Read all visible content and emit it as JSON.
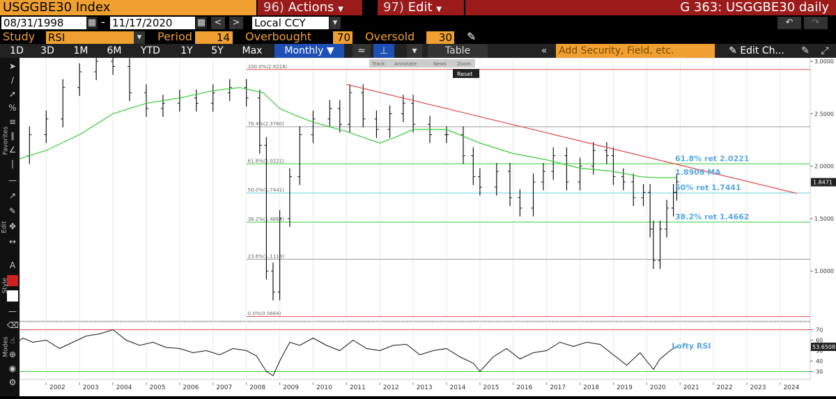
{
  "header": {
    "security": "USGGBE30 Index",
    "actions_num": "96)",
    "actions_label": "Actions",
    "edit_num": "97)",
    "edit_label": "Edit",
    "chart_title": "G 363: USGGBE30 daily"
  },
  "range": {
    "start": "08/31/1998",
    "separator": "-",
    "end": "11/17/2020",
    "currency": "Local CCY"
  },
  "study": {
    "label": "Study",
    "value": "RSI",
    "period_label": "Period",
    "period": "14",
    "overbought_label": "Overbought",
    "overbought": "70",
    "oversold_label": "Oversold",
    "oversold": "30"
  },
  "periods": [
    "1D",
    "3D",
    "1M",
    "6M",
    "YTD",
    "1Y",
    "5Y",
    "Max"
  ],
  "frequency": "Monthly",
  "table_label": "Table",
  "search_placeholder": "Add Security, Field, etc.",
  "edit_chart_label": "Edit Ch...",
  "overlay_tools": {
    "track": "Track",
    "annotate": "Annotate",
    "news": "News",
    "zoom": "Zoom",
    "reset": "Reset"
  },
  "left_labels": {
    "favorites": "Favorites",
    "edit": "Edit",
    "style": "Style",
    "modes": "Modes"
  },
  "colors": {
    "accent_orange": "#f0a030",
    "menu_red": "#9b1b1b",
    "ma_green": "#33cc33",
    "trend_red": "#e05050",
    "annot_blue": "#5aa8e0"
  },
  "chart_data": {
    "type": "line",
    "x_tick_labels": [
      "2002",
      "2003",
      "2004",
      "2005",
      "2006",
      "2007",
      "2008",
      "2009",
      "2010",
      "2011",
      "2012",
      "2013",
      "2014",
      "2015",
      "2016",
      "2017",
      "2018",
      "2019",
      "2020",
      "2021",
      "2022",
      "2023",
      "2024"
    ],
    "y_tick_labels": [
      "3.0000",
      "2.5000",
      "2.0000",
      "1.5000",
      "1.0000"
    ],
    "y_ticks": [
      3.0,
      2.5,
      2.0,
      1.5,
      1.0
    ],
    "ylim": [
      0.55,
      3.02
    ],
    "price_series": {
      "name": "USGGBE30 monthly bars",
      "x": [
        2001.0,
        2001.5,
        2002.0,
        2002.5,
        2003.0,
        2003.5,
        2004.0,
        2004.5,
        2005.0,
        2005.5,
        2006.0,
        2006.5,
        2007.0,
        2007.5,
        2008.0,
        2008.4,
        2008.6,
        2008.8,
        2009.0,
        2009.3,
        2009.6,
        2010.0,
        2010.5,
        2010.8,
        2011.1,
        2011.5,
        2011.9,
        2012.3,
        2012.7,
        2013.0,
        2013.5,
        2014.0,
        2014.5,
        2014.8,
        2015.0,
        2015.5,
        2015.9,
        2016.2,
        2016.6,
        2016.9,
        2017.2,
        2017.6,
        2018.0,
        2018.4,
        2018.8,
        2019.0,
        2019.3,
        2019.6,
        2019.9,
        2020.1,
        2020.2,
        2020.4,
        2020.6,
        2020.8,
        2020.9
      ],
      "values": [
        2.1,
        2.3,
        2.45,
        2.75,
        2.9,
        3.0,
        2.95,
        2.7,
        2.55,
        2.6,
        2.65,
        2.6,
        2.7,
        2.75,
        2.65,
        2.2,
        1.0,
        0.8,
        1.5,
        1.9,
        2.3,
        2.45,
        2.55,
        2.4,
        2.7,
        2.45,
        2.35,
        2.5,
        2.6,
        2.4,
        2.3,
        2.3,
        2.1,
        1.9,
        1.8,
        1.95,
        1.7,
        1.6,
        1.85,
        1.95,
        2.1,
        1.85,
        2.0,
        2.15,
        2.1,
        1.9,
        1.85,
        1.7,
        1.75,
        1.4,
        1.1,
        1.4,
        1.6,
        1.75,
        1.85
      ]
    },
    "moving_average": {
      "name": "MA",
      "x": [
        2001.0,
        2002.0,
        2003.0,
        2004.0,
        2005.0,
        2006.0,
        2007.0,
        2007.8,
        2008.5,
        2009.0,
        2009.5,
        2010.0,
        2011.0,
        2012.0,
        2012.5,
        2013.0,
        2014.0,
        2015.0,
        2016.0,
        2017.0,
        2018.0,
        2019.0,
        2019.8,
        2020.3,
        2020.9
      ],
      "values": [
        2.05,
        2.15,
        2.3,
        2.5,
        2.6,
        2.65,
        2.72,
        2.75,
        2.7,
        2.55,
        2.48,
        2.42,
        2.33,
        2.22,
        2.28,
        2.35,
        2.35,
        2.22,
        2.12,
        2.06,
        1.98,
        1.95,
        1.9,
        1.89,
        1.89
      ]
    },
    "trendline": {
      "x": [
        2011.0,
        2024.5
      ],
      "values": [
        2.78,
        1.74
      ]
    },
    "fib_levels": [
      {
        "label": "100.0%(2.9218)",
        "value": 2.9218,
        "color": "#e05050"
      },
      {
        "label": "76.4%(2.3760)",
        "value": 2.376,
        "color": "#999999"
      },
      {
        "label": "61.8%(2.0221)",
        "value": 2.0221,
        "color": "#33cc33"
      },
      {
        "label": "50.0%(1.7441)",
        "value": 1.7441,
        "color": "#5fd0e0"
      },
      {
        "label": "38.2%(1.4662)",
        "value": 1.4662,
        "color": "#33cc33"
      },
      {
        "label": "23.6%(1.1118)",
        "value": 1.1118,
        "color": "#999999"
      },
      {
        "label": "0.0%(0.5664)",
        "value": 0.5664,
        "color": "#e05050"
      }
    ],
    "annotations": [
      {
        "text": "61.8% ret 2.0221",
        "value": 2.0221
      },
      {
        "text": "1.8906 MA",
        "value": 1.8906
      },
      {
        "text": "50% ret 1.7441",
        "value": 1.7441
      },
      {
        "text": "38.2% ret 1.4662",
        "value": 1.4662
      }
    ],
    "last_price_label": "1.8471",
    "last_price": 1.8471,
    "rsi": {
      "name": "Lofty RSI",
      "ylim": [
        25,
        75
      ],
      "y_tick_labels": [
        "70",
        "60",
        "50",
        "40",
        "30"
      ],
      "y_ticks": [
        70,
        60,
        50,
        40,
        30
      ],
      "overbought": 70,
      "oversold": 30,
      "last_label": "53.6508",
      "last_value": 53.65,
      "x": [
        2001.0,
        2001.3,
        2001.6,
        2002.0,
        2002.4,
        2002.8,
        2003.2,
        2003.6,
        2004.0,
        2004.4,
        2004.8,
        2005.2,
        2005.6,
        2006.0,
        2006.4,
        2006.8,
        2007.2,
        2007.6,
        2008.0,
        2008.3,
        2008.6,
        2008.8,
        2009.0,
        2009.3,
        2009.6,
        2010.0,
        2010.4,
        2010.8,
        2011.2,
        2011.6,
        2012.0,
        2012.4,
        2012.8,
        2013.2,
        2013.6,
        2014.0,
        2014.4,
        2014.8,
        2015.0,
        2015.4,
        2015.8,
        2016.2,
        2016.6,
        2017.0,
        2017.4,
        2017.8,
        2018.2,
        2018.6,
        2019.0,
        2019.4,
        2019.8,
        2020.0,
        2020.2,
        2020.4,
        2020.7,
        2020.9
      ],
      "values": [
        55,
        62,
        58,
        60,
        52,
        58,
        64,
        66,
        70,
        60,
        55,
        58,
        53,
        52,
        48,
        50,
        46,
        52,
        50,
        45,
        30,
        26,
        40,
        58,
        55,
        62,
        55,
        50,
        60,
        52,
        50,
        55,
        56,
        46,
        50,
        52,
        44,
        38,
        30,
        44,
        52,
        42,
        48,
        50,
        58,
        54,
        58,
        56,
        46,
        36,
        48,
        40,
        32,
        42,
        50,
        54
      ]
    }
  }
}
